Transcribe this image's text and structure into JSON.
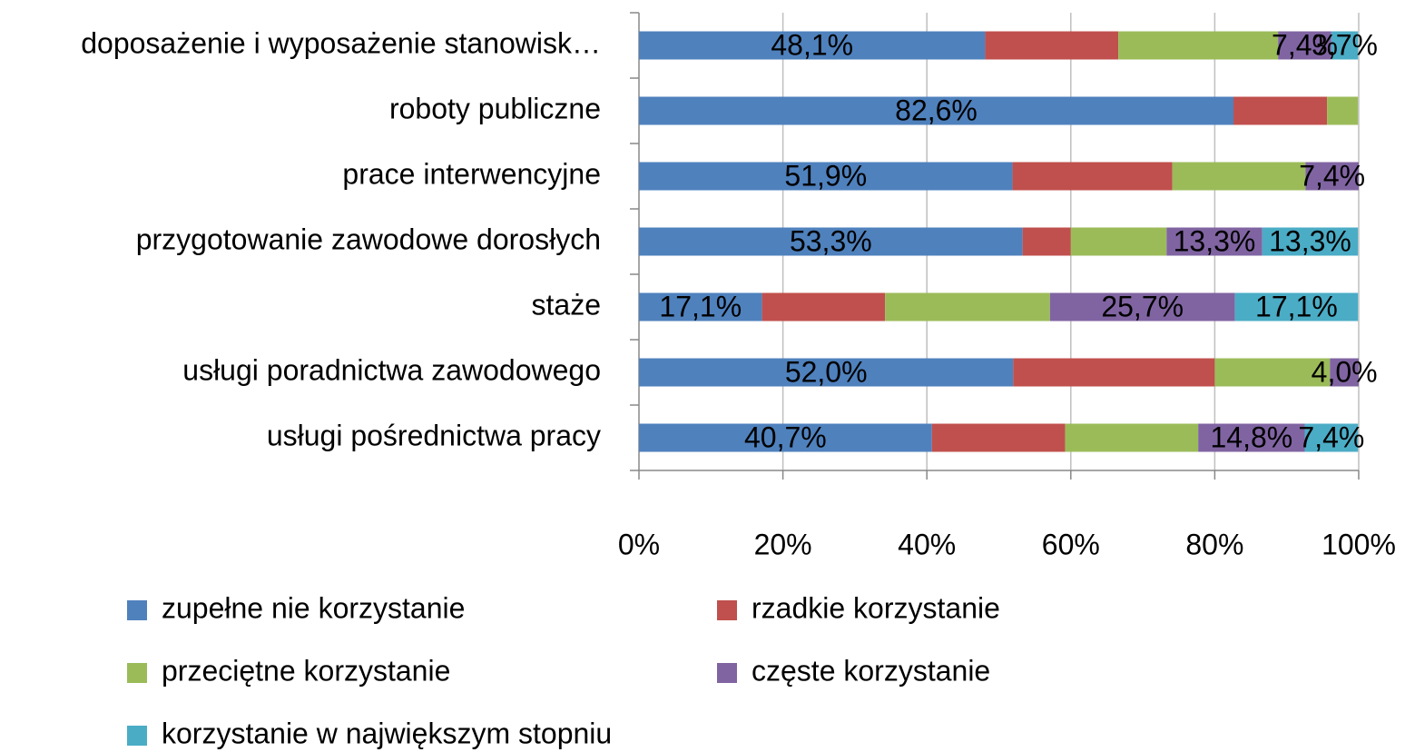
{
  "chart_data": {
    "type": "stacked_bar_horizontal",
    "categories": [
      "doposażenie i wyposażenie stanowisk…",
      "roboty publiczne",
      "prace interwencyjne",
      "przygotowanie zawodowe dorosłych",
      "staże",
      "usługi poradnictwa zawodowego",
      "usługi pośrednictwa pracy"
    ],
    "series": [
      {
        "name": "zupełne nie korzystanie",
        "color": "#4f81bd",
        "values": [
          48.1,
          82.6,
          51.9,
          53.3,
          17.1,
          52.0,
          40.7
        ],
        "value_labels": [
          "48,1%",
          "82,6%",
          "51,9%",
          "53,3%",
          "17,1%",
          "52,0%",
          "40,7%"
        ]
      },
      {
        "name": "rzadkie korzystanie",
        "color": "#c0504d",
        "values": [
          18.5,
          13.0,
          22.2,
          6.7,
          17.1,
          28.0,
          18.5
        ],
        "value_labels": [
          null,
          null,
          null,
          null,
          null,
          null,
          null
        ]
      },
      {
        "name": "przeciętne korzystanie",
        "color": "#9bbb59",
        "values": [
          22.2,
          4.3,
          18.5,
          13.3,
          22.9,
          16.0,
          18.5
        ],
        "value_labels": [
          null,
          null,
          null,
          null,
          null,
          null,
          null
        ]
      },
      {
        "name": "częste korzystanie",
        "color": "#8064a2",
        "values": [
          7.4,
          null,
          7.4,
          13.3,
          25.7,
          4.0,
          14.8
        ],
        "value_labels": [
          "7,4%",
          null,
          "7,4%",
          "13,3%",
          "25,7%",
          "4,0%",
          "14,8%"
        ]
      },
      {
        "name": "korzystanie w największym stopniu",
        "color": "#4bacc6",
        "values": [
          3.7,
          null,
          null,
          13.3,
          17.1,
          null,
          7.4
        ],
        "value_labels": [
          "3,7%",
          null,
          null,
          "13,3%",
          "17,1%",
          null,
          "7,4%"
        ]
      }
    ],
    "xlim": [
      0,
      100
    ],
    "xticks": [
      {
        "value": 0,
        "label": "0%"
      },
      {
        "value": 20,
        "label": "20%"
      },
      {
        "value": 40,
        "label": "40%"
      },
      {
        "value": 60,
        "label": "60%"
      },
      {
        "value": 80,
        "label": "80%"
      },
      {
        "value": 100,
        "label": "100%"
      }
    ],
    "grid": true,
    "legend": "bottom"
  }
}
